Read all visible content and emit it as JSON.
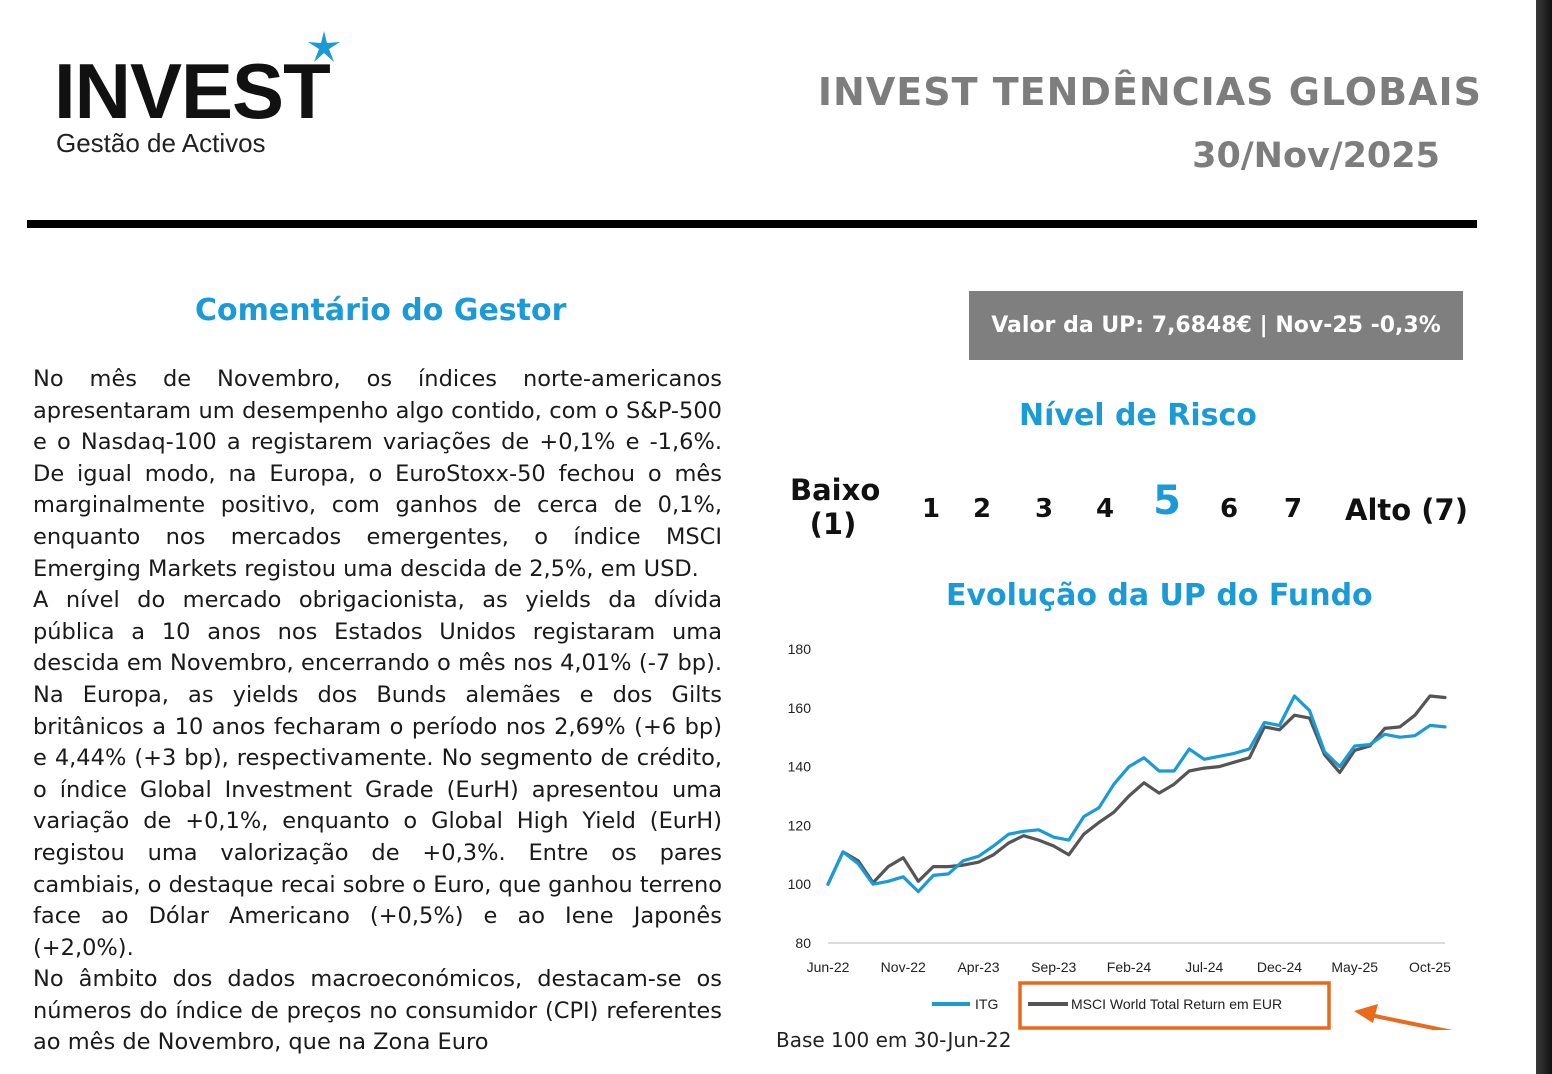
{
  "header": {
    "logo_text": "INVEST",
    "logo_subtitle": "Gestão de Activos",
    "title": "INVEST TENDÊNCIAS GLOBAIS",
    "date": "30/Nov/2025",
    "brand_color": "#1a9ad6"
  },
  "comment": {
    "title": "Comentário do Gestor",
    "paragraphs": [
      "No mês de Novembro, os índices norte-americanos apresentaram um desempenho algo contido, com o S&P-500 e o Nasdaq-100 a registarem variações de +0,1% e -1,6%. De igual modo, na Europa, o EuroStoxx-50 fechou o mês marginalmente positivo, com ganhos de cerca de 0,1%, enquanto nos mercados emergentes, o índice MSCI Emerging Markets registou uma descida de 2,5%, em USD.",
      "A nível do mercado obrigacionista, as yields da dívida pública a 10 anos nos Estados Unidos registaram uma descida em Novembro, encerrando o mês nos 4,01% (-7 bp). Na Europa, as yields dos Bunds alemães e dos Gilts britânicos a 10 anos fecharam o período nos 2,69% (+6 bp) e 4,44% (+3 bp), respectivamente. No segmento de crédito, o índice Global Investment Grade (EurH) apresentou uma variação de +0,1%, enquanto o Global High Yield (EurH) registou uma valorização de +0,3%. Entre os pares cambiais, o destaque recai sobre o Euro, que ganhou terreno face ao Dólar Americano (+0,5%) e ao Iene Japonês (+2,0%).",
      "No âmbito dos dados macroeconómicos, destacam-se os números do índice de preços no consumidor (CPI) referentes ao mês de Novembro, que na Zona Euro"
    ]
  },
  "up_value": "Valor da UP: 7,6848€ | Nov-25 -0,3%",
  "risk": {
    "title": "Nível de Risco",
    "low_label": "Baixo (1)",
    "high_label": "Alto (7)",
    "levels": [
      "1",
      "2",
      "3",
      "4",
      "5",
      "6",
      "7"
    ],
    "current": "5"
  },
  "chart_title": "Evolução da UP do Fundo",
  "chart_note": "Base 100 em 30-Jun-22",
  "chart_data": {
    "type": "line",
    "x": [
      "Jun-22",
      "Jul-22",
      "Aug-22",
      "Sep-22",
      "Oct-22",
      "Nov-22",
      "Dec-22",
      "Jan-23",
      "Feb-23",
      "Mar-23",
      "Apr-23",
      "May-23",
      "Jun-23",
      "Jul-23",
      "Aug-23",
      "Sep-23",
      "Oct-23",
      "Nov-23",
      "Dec-23",
      "Jan-24",
      "Feb-24",
      "Mar-24",
      "Apr-24",
      "May-24",
      "Jun-24",
      "Jul-24",
      "Aug-24",
      "Sep-24",
      "Oct-24",
      "Nov-24",
      "Dec-24",
      "Jan-25",
      "Feb-25",
      "Mar-25",
      "Apr-25",
      "May-25",
      "Jun-25",
      "Jul-25",
      "Aug-25",
      "Sep-25",
      "Oct-25",
      "Nov-25"
    ],
    "xticks": [
      "Jun-22",
      "Nov-22",
      "Apr-23",
      "Sep-23",
      "Feb-24",
      "Jul-24",
      "Dec-24",
      "May-25",
      "Oct-25"
    ],
    "yticks": [
      80,
      100,
      120,
      140,
      160,
      180
    ],
    "ylim": [
      80,
      180
    ],
    "grid": false,
    "legend_position": "bottom",
    "series": [
      {
        "name": "ITG",
        "color": "#1a9ad6",
        "values": [
          100,
          111,
          107,
          100,
          101,
          102.5,
          97.5,
          103,
          103.5,
          108,
          109.5,
          113,
          117,
          118,
          118.5,
          116,
          115,
          123,
          126,
          134,
          140,
          143,
          138.5,
          138.5,
          146,
          142.5,
          143.5,
          144.5,
          146,
          155,
          154,
          164,
          159,
          145,
          140,
          147,
          147.5,
          151,
          150,
          150.5,
          154,
          153.5
        ]
      },
      {
        "name": "MSCI World Total Return em EUR",
        "color": "#555555",
        "values": [
          100,
          111,
          108,
          100.5,
          106,
          109,
          101,
          106,
          106,
          106.5,
          107.5,
          110,
          114,
          116.5,
          115,
          113,
          110,
          117,
          121,
          124.5,
          130,
          134.5,
          131,
          134,
          138.5,
          139.5,
          140,
          141.5,
          143,
          153.5,
          152.5,
          157.5,
          156.5,
          144,
          138,
          145.5,
          147,
          153,
          153.5,
          157.5,
          164,
          163.5
        ]
      }
    ]
  }
}
